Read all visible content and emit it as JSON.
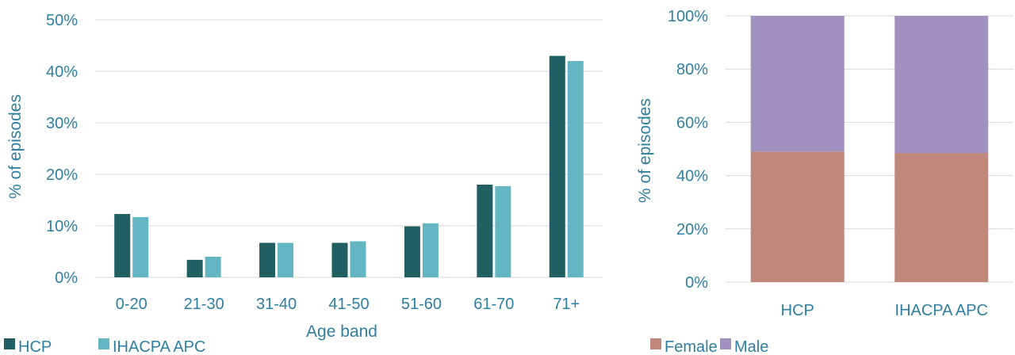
{
  "chart_data": [
    {
      "type": "bar",
      "xlabel": "Age band",
      "ylabel": "% of episodes",
      "categories": [
        "0-20",
        "21-30",
        "31-40",
        "41-50",
        "51-60",
        "61-70",
        "71+"
      ],
      "series": [
        {
          "name": "HCP",
          "color": "#215f62",
          "values": [
            12.3,
            3.4,
            6.7,
            6.7,
            9.9,
            18.0,
            43.0
          ]
        },
        {
          "name": "IHACPA APC",
          "color": "#63b5c1",
          "values": [
            11.7,
            4.0,
            6.7,
            7.0,
            10.5,
            17.7,
            42.0
          ]
        }
      ],
      "ylim": [
        0,
        50
      ],
      "yticks": [
        "0%",
        "10%",
        "20%",
        "30%",
        "40%",
        "50%"
      ],
      "grid": true,
      "legend_position": "bottom-left"
    },
    {
      "type": "bar",
      "stacked": true,
      "xlabel": "",
      "ylabel": "% of episodes",
      "categories": [
        "HCP",
        "IHACPA APC"
      ],
      "series": [
        {
          "name": "Female",
          "color": "#c0887b",
          "values": [
            49,
            48.5
          ]
        },
        {
          "name": "Male",
          "color": "#a191be",
          "values": [
            51,
            51.5
          ]
        }
      ],
      "ylim": [
        0,
        100
      ],
      "yticks": [
        "0%",
        "20%",
        "40%",
        "60%",
        "80%",
        "100%"
      ],
      "grid": true,
      "legend_position": "bottom-left"
    }
  ]
}
